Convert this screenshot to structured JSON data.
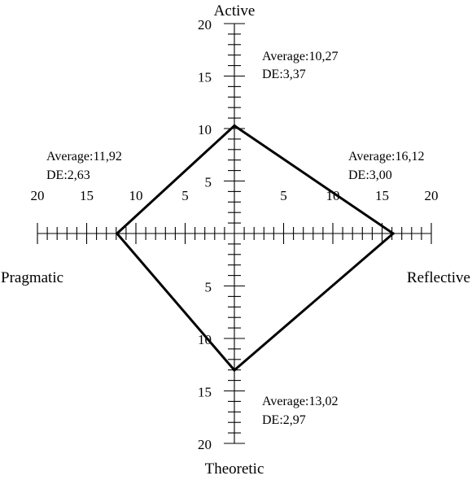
{
  "chart_data": {
    "type": "radar",
    "title": "",
    "axes": [
      {
        "key": "active",
        "label": "Active",
        "direction": "up",
        "value": 10.27,
        "average_text": "Average:10,27",
        "de_text": "DE:3,37"
      },
      {
        "key": "reflective",
        "label": "Reflective",
        "direction": "right",
        "value": 16.12,
        "average_text": "Average:16,12",
        "de_text": "DE:3,00"
      },
      {
        "key": "theoretic",
        "label": "Theoretic",
        "direction": "down",
        "value": 13.02,
        "average_text": "Average:13,02",
        "de_text": "DE:2,97"
      },
      {
        "key": "pragmatic",
        "label": "Pragmatic",
        "direction": "left",
        "value": 11.92,
        "average_text": "Average:11,92",
        "de_text": "DE:2,63"
      }
    ],
    "range": [
      0,
      20
    ],
    "minor_tick_step": 1,
    "major_tick_step": 5,
    "tick_labels": [
      "5",
      "10",
      "15",
      "20"
    ],
    "legend": "none",
    "grid": false,
    "colors": {
      "line": "#000000",
      "background": "#ffffff"
    }
  }
}
